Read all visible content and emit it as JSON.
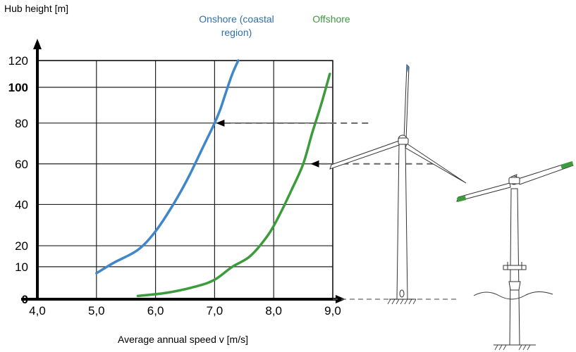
{
  "chart_data": {
    "type": "line",
    "ylabel": "Hub height [m]",
    "xlabel": "Average annual speed v [m/s]",
    "xlim": [
      4.0,
      9.0
    ],
    "ylim": [
      0,
      120
    ],
    "grid": true,
    "x_ticks": [
      "4,0",
      "5,0",
      "6,0",
      "7,0",
      "8,0",
      "9,0"
    ],
    "x_tick_values": [
      4.0,
      5.0,
      6.0,
      7.0,
      8.0,
      9.0
    ],
    "y_ticks": [
      "0",
      "10",
      "20",
      "40",
      "60",
      "80",
      "100",
      "120"
    ],
    "y_tick_values": [
      0,
      10,
      20,
      40,
      60,
      80,
      100,
      120
    ],
    "y_axis_breakpoints": {
      "values": [
        0,
        10,
        20,
        40,
        60,
        80,
        100,
        120
      ],
      "positions": [
        0,
        0.136,
        0.224,
        0.397,
        0.567,
        0.738,
        0.888,
        1.0
      ]
    },
    "series": [
      {
        "name": "Onshore (coastal region)",
        "color": "#3f87c9",
        "x": [
          5.0,
          5.3,
          5.7,
          6.0,
          6.3,
          6.55,
          6.8,
          7.0,
          7.1,
          7.2,
          7.3,
          7.4
        ],
        "y": [
          8,
          12,
          18,
          27,
          40,
          53,
          68,
          80,
          88,
          98,
          110,
          120
        ]
      },
      {
        "name": "Offshore",
        "color": "#3c9c3c",
        "x": [
          5.7,
          6.2,
          6.7,
          7.0,
          7.3,
          7.6,
          7.9,
          8.1,
          8.3,
          8.5,
          8.65,
          8.8,
          8.95
        ],
        "y": [
          1,
          2,
          4,
          6,
          10,
          15,
          25,
          35,
          47,
          60,
          75,
          90,
          110
        ]
      }
    ],
    "annotations": [
      {
        "type": "arrow",
        "y": 80,
        "from_x": 9.6,
        "to_x": 7.0
      },
      {
        "type": "arrow",
        "y": 60,
        "from_x": 10.7,
        "to_x": 8.6
      },
      {
        "type": "dashed-line",
        "y": 0,
        "from_x": 9.0,
        "to_x": 11.1
      }
    ]
  },
  "illustrations": {
    "onshore_turbine": "wind-turbine-onshore",
    "offshore_turbine": "wind-turbine-offshore"
  }
}
